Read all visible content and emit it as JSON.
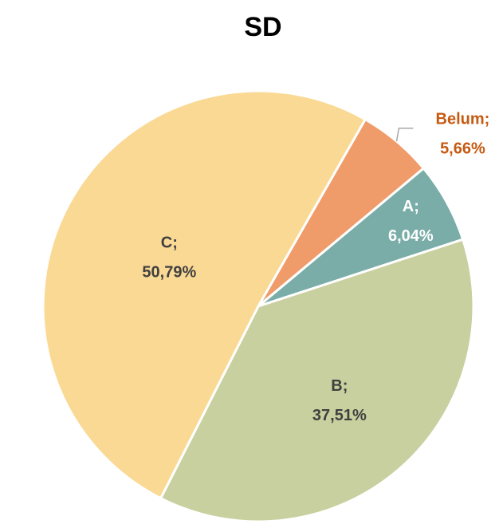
{
  "chart_data": {
    "type": "pie",
    "title": "SD",
    "categories": [
      "Belum",
      "A",
      "B",
      "C"
    ],
    "label_separator": ";",
    "values": [
      5.66,
      6.04,
      37.51,
      50.79
    ],
    "value_labels": [
      "5,66%",
      "6,04%",
      "37,51%",
      "50,79%"
    ],
    "colors": [
      "#F09C6A",
      "#7AADA8",
      "#C9D09F",
      "#FAD994"
    ]
  }
}
